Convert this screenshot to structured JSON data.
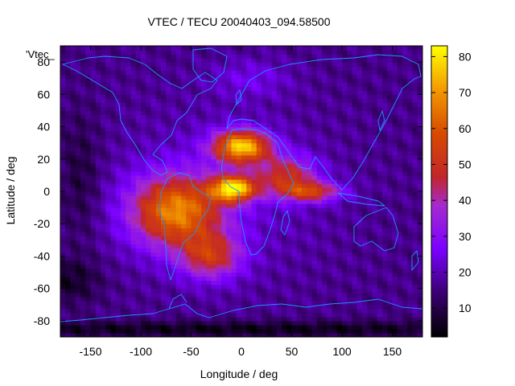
{
  "chart_data": {
    "type": "heatmap",
    "title": "VTEC / TECU 20040403_094.58500",
    "xlabel": "Longitude / deg",
    "ylabel": "Latitude / deg",
    "xlim": [
      -180,
      180
    ],
    "ylim": [
      -90,
      90
    ],
    "x_ticks": [
      -150,
      -100,
      -50,
      0,
      50,
      100,
      150
    ],
    "y_ticks": [
      -80,
      -60,
      -40,
      -20,
      0,
      20,
      40,
      60,
      80
    ],
    "colorbar": {
      "range": [
        2,
        83
      ],
      "ticks": [
        10,
        20,
        30,
        40,
        50,
        60,
        70,
        80
      ],
      "colormap": "gnuplot pm3d (black-purple-red-orange-yellow)"
    },
    "series_key": "'Vtec_",
    "overlay": "coastlines",
    "coastline_color": "#1e90ff",
    "grid": false,
    "peak_regions": [
      {
        "lon": -70,
        "lat": -15,
        "value": 70
      },
      {
        "lon": 0,
        "lat": 30,
        "value": 82
      },
      {
        "lon": -10,
        "lat": 0,
        "value": 80
      },
      {
        "lon": 70,
        "lat": 0,
        "value": 50
      }
    ]
  }
}
